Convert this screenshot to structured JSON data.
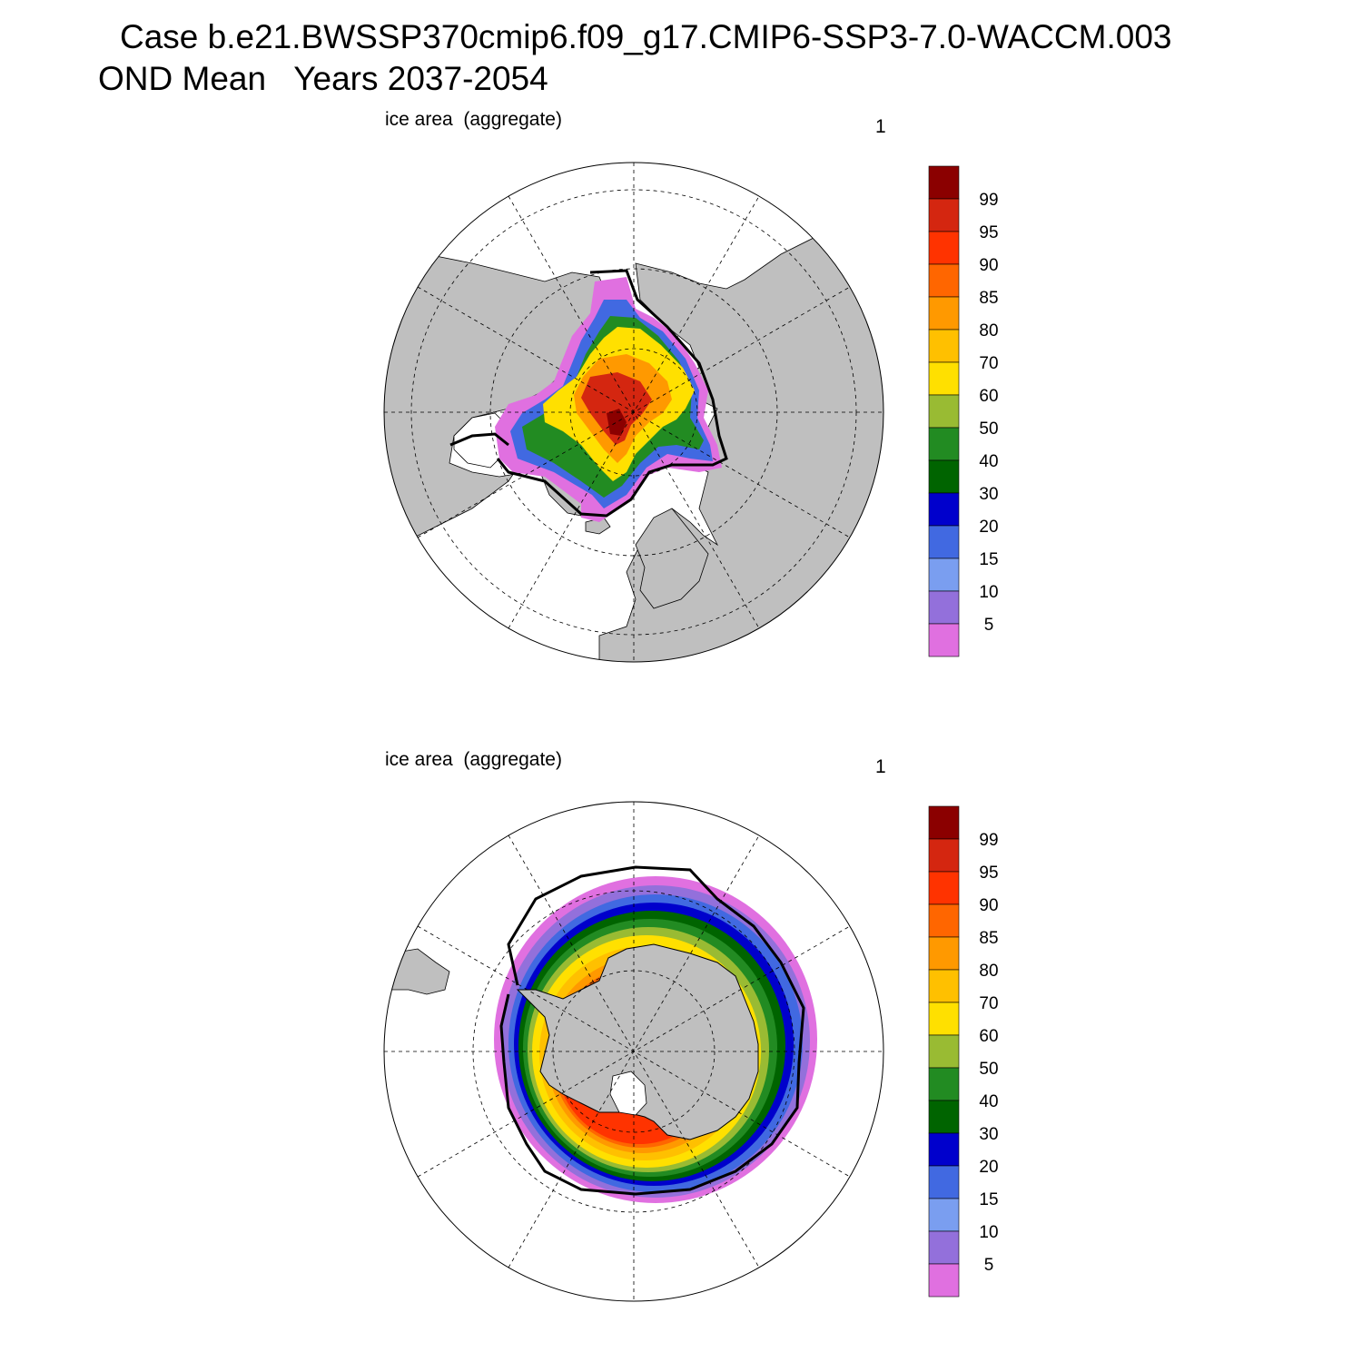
{
  "title": {
    "line1": "Case b.e21.BWSSP370cmip6.f09_g17.CMIP6-SSP3-7.0-WACCM.003",
    "line2": "OND Mean   Years 2037-2054"
  },
  "colorbar": {
    "labels": [
      "99",
      "95",
      "90",
      "85",
      "80",
      "70",
      "60",
      "50",
      "40",
      "30",
      "20",
      "15",
      "10",
      "5"
    ],
    "colors": [
      "#8b0000",
      "#d42610",
      "#ff3300",
      "#ff6600",
      "#ff9900",
      "#ffc000",
      "#ffe000",
      "#99bb33",
      "#228b22",
      "#006400",
      "#0000cc",
      "#4169e1",
      "#7a9ef0",
      "#9370db",
      "#e070e0"
    ]
  },
  "panels": [
    {
      "id": "north",
      "label": "ice area  (aggregate)",
      "number": "1",
      "hemisphere": "Arctic"
    },
    {
      "id": "south",
      "label": "ice area  (aggregate)",
      "number": "1",
      "hemisphere": "Antarctic"
    }
  ],
  "colors": {
    "land": "#bfbfbf",
    "ocean": "#ffffff",
    "ice_edge_contour": "#000000"
  }
}
